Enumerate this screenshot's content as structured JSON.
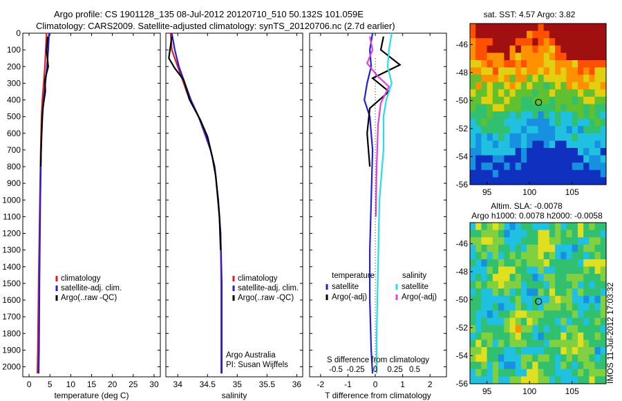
{
  "header": {
    "title_line1": "Argo profile: CS 1901128_135 08-Jul-2012 20120710_510 50.132S 101.059E",
    "title_line2": "Climatology: CARS2009. Satellite-adjusted climatology: synTS_20120706.nc (2.7d earlier)"
  },
  "colors": {
    "climatology": "#e31a1c",
    "satellite": "#1f1fdd",
    "argo": "#000000",
    "satellite_salinity": "#22e0e6",
    "argo_salinity": "#e040e0"
  },
  "footer": {
    "timestamp": "IMOS 11-Jul-2012 17:03:32"
  },
  "chart_data": [
    {
      "id": "temperature",
      "type": "line",
      "xlabel": "temperature (deg C)",
      "ylabel": "",
      "xlim": [
        -1.5,
        31.5
      ],
      "ylim": [
        2060,
        0
      ],
      "xticks": [
        0,
        5,
        10,
        15,
        20,
        25,
        30
      ],
      "yticks": [
        0,
        100,
        200,
        300,
        400,
        500,
        600,
        700,
        800,
        900,
        1000,
        1100,
        1200,
        1300,
        1400,
        1500,
        1600,
        1700,
        1800,
        1900,
        2000
      ],
      "legend": [
        "climatology",
        "satellite-adj. clim.",
        "Argo(..raw -QC)"
      ],
      "legend_position": "lower-center",
      "series": [
        {
          "name": "climatology",
          "color": "#e31a1c",
          "x": [
            4.2,
            4.0,
            3.8,
            3.5,
            3.2,
            3.0,
            2.8,
            2.6,
            2.3,
            2.1,
            2.0
          ],
          "y": [
            0,
            100,
            200,
            300,
            400,
            500,
            700,
            1000,
            1500,
            1900,
            2040
          ]
        },
        {
          "name": "satellite-adj. clim.",
          "color": "#1f1fdd",
          "x": [
            4.8,
            4.6,
            4.3,
            3.9,
            3.5,
            3.2,
            2.9,
            2.7,
            2.5,
            2.4,
            2.3
          ],
          "y": [
            0,
            100,
            200,
            300,
            400,
            500,
            700,
            1000,
            1500,
            1900,
            2040
          ]
        },
        {
          "name": "Argo(..raw -QC)",
          "color": "#000000",
          "x": [
            4.5,
            4.2,
            4.6,
            3.8,
            3.9,
            3.3,
            3.0,
            2.8
          ],
          "y": [
            20,
            100,
            200,
            280,
            350,
            450,
            600,
            800
          ]
        }
      ]
    },
    {
      "id": "salinity",
      "type": "line",
      "xlabel": "salinity",
      "ylabel": "",
      "xlim": [
        33.8,
        36.1
      ],
      "ylim": [
        2060,
        0
      ],
      "xticks": [
        34,
        34.5,
        35,
        35.5,
        36
      ],
      "xtick_labels": [
        "34",
        "34.5",
        "35",
        "35.5",
        "36"
      ],
      "legend": [
        "climatology",
        "satellite-adj. clim.",
        "Argo(..raw -QC)"
      ],
      "legend_position": "lower-right",
      "annotations": [
        "Argo Australia",
        "PI: Susan Wijffels"
      ],
      "series": [
        {
          "name": "climatology",
          "color": "#e31a1c",
          "x": [
            33.88,
            33.9,
            34.0,
            34.1,
            34.2,
            34.35,
            34.45,
            34.55,
            34.62,
            34.68,
            34.72,
            34.73,
            34.73,
            34.73
          ],
          "y": [
            0,
            100,
            200,
            300,
            400,
            500,
            600,
            700,
            800,
            1000,
            1200,
            1500,
            1800,
            2040
          ]
        },
        {
          "name": "satellite-adj. clim.",
          "color": "#1f1fdd",
          "x": [
            33.9,
            33.95,
            34.02,
            34.12,
            34.22,
            34.35,
            34.46,
            34.55,
            34.62,
            34.68,
            34.72,
            34.74,
            34.74,
            34.74
          ],
          "y": [
            0,
            100,
            200,
            300,
            400,
            500,
            600,
            700,
            800,
            1000,
            1200,
            1500,
            1800,
            2040
          ]
        },
        {
          "name": "Argo(..raw -QC)",
          "color": "#000000",
          "x": [
            33.9,
            33.85,
            33.95,
            34.1,
            34.2,
            34.38,
            34.5,
            34.58,
            34.64,
            34.7,
            34.72
          ],
          "y": [
            20,
            150,
            210,
            280,
            400,
            520,
            620,
            740,
            860,
            1100,
            1300
          ]
        }
      ]
    },
    {
      "id": "difference",
      "type": "line",
      "xlabel": "T difference from climatology",
      "xlabel2": "S difference from climatology",
      "xlim": [
        -2.4,
        2.6
      ],
      "ylim": [
        2060,
        0
      ],
      "xticks": [
        -2,
        -1,
        0,
        1,
        2
      ],
      "xticks2": [
        -0.5,
        -0.25,
        0,
        0.25,
        0.5
      ],
      "xtick2_labels": [
        "-0.5",
        "-0.25",
        "0",
        "0.25",
        "0.5"
      ],
      "legend_headers": [
        "temperature",
        "salinity"
      ],
      "legend": [
        "satellite",
        "Argo(-adj)",
        "satellite",
        "Argo(-adj)"
      ],
      "legend_position": "lower-center",
      "series": [
        {
          "name": "satellite",
          "group": "temperature",
          "color": "#1f1fdd",
          "x": [
            -0.1,
            -0.2,
            -0.15,
            -0.3,
            -0.4,
            -0.2,
            -0.1,
            -0.15,
            -0.2,
            -0.2,
            -0.15,
            -0.1
          ],
          "y": [
            0,
            100,
            200,
            300,
            400,
            500,
            700,
            1000,
            1300,
            1600,
            1900,
            2040
          ]
        },
        {
          "name": "Argo(-adj)",
          "group": "temperature",
          "color": "#000000",
          "x": [
            0.3,
            0.2,
            0.9,
            -0.1,
            0.5,
            -0.2,
            -0.3,
            -0.2
          ],
          "y": [
            20,
            100,
            190,
            270,
            350,
            450,
            600,
            800
          ]
        },
        {
          "name": "satellite",
          "group": "salinity",
          "color": "#22e0e6",
          "x": [
            0.6,
            0.5,
            0.45,
            0.6,
            0.4,
            0.3,
            0.3,
            0.25,
            0.15,
            0.1,
            0.05,
            0.05
          ],
          "y": [
            0,
            100,
            200,
            300,
            400,
            500,
            700,
            800,
            1000,
            1400,
            1800,
            2040
          ]
        },
        {
          "name": "Argo(-adj)",
          "group": "salinity",
          "color": "#e040e0",
          "x": [
            -0.2,
            -0.1,
            -0.3,
            0.1,
            0.5,
            0.2,
            0.1,
            0.05,
            0.02
          ],
          "y": [
            20,
            100,
            180,
            260,
            320,
            420,
            550,
            800,
            1100
          ]
        }
      ]
    },
    {
      "id": "sst_map",
      "type": "heatmap",
      "title": "sat. SST: 4.57 Argo: 3.82",
      "xlim": [
        93,
        109
      ],
      "ylim": [
        -56,
        -44.5
      ],
      "xticks": [
        95,
        100,
        105
      ],
      "yticks": [
        -56,
        -54,
        -52,
        -50,
        -48,
        -46
      ],
      "marker": {
        "lon": 101.06,
        "lat": -50.13
      },
      "colors": [
        "#1030c0",
        "#1890e0",
        "#20c0e0",
        "#30c070",
        "#60c030",
        "#e0d010",
        "#ff9000",
        "#ff5000",
        "#a01010"
      ]
    },
    {
      "id": "sla_map",
      "type": "heatmap",
      "title": "Altim. SLA: -0.0078",
      "subtitle": "Argo h1000: 0.0078 h2000: -0.0058",
      "xlim": [
        93,
        109
      ],
      "ylim": [
        -56,
        -44.5
      ],
      "xticks": [
        95,
        100,
        105
      ],
      "yticks": [
        -56,
        -54,
        -52,
        -50,
        -48,
        -46
      ],
      "marker": {
        "lon": 101.06,
        "lat": -50.13
      },
      "colors": [
        "#1890e0",
        "#20c0e0",
        "#30c070",
        "#80d040",
        "#e0e020",
        "#ff9000",
        "#ff5000"
      ]
    }
  ]
}
